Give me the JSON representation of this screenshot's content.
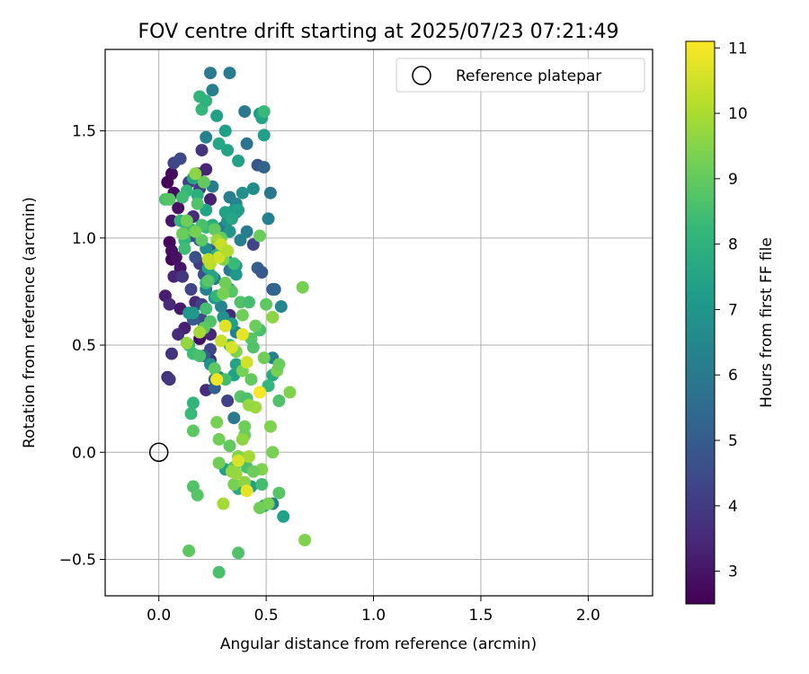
{
  "chart_data": {
    "type": "scatter",
    "title": "FOV centre drift starting at 2025/07/23 07:21:49",
    "xlabel": "Angular distance from reference (arcmin)",
    "ylabel": "Rotation from reference (arcmin)",
    "xlim": [
      -0.25,
      2.3
    ],
    "ylim": [
      -0.67,
      1.88
    ],
    "xticks": [
      0.0,
      0.5,
      1.0,
      1.5,
      2.0
    ],
    "xtick_labels": [
      "0.0",
      "0.5",
      "1.0",
      "1.5",
      "2.0"
    ],
    "yticks": [
      -0.5,
      0.0,
      0.5,
      1.0,
      1.5
    ],
    "ytick_labels": [
      "−0.5",
      "0.0",
      "0.5",
      "1.0",
      "1.5"
    ],
    "grid": true,
    "legend": {
      "position": "top-right",
      "entries": [
        "Reference platepar"
      ]
    },
    "reference_point": {
      "x": 0.0,
      "y": 0.0
    },
    "colorbar": {
      "label": "Hours from first FF file",
      "min": 2.5,
      "max": 11.1,
      "ticks": [
        3,
        4,
        5,
        6,
        7,
        8,
        9,
        10,
        11
      ],
      "tick_labels": [
        "3",
        "4",
        "5",
        "6",
        "7",
        "8",
        "9",
        "10",
        "11"
      ],
      "colormap": "viridis"
    },
    "point_columns": [
      "x",
      "y",
      "hours"
    ],
    "points": [
      [
        0.04,
        1.26,
        2.6
      ],
      [
        0.06,
        1.3,
        2.7
      ],
      [
        0.07,
        1.21,
        2.8
      ],
      [
        0.09,
        1.14,
        2.9
      ],
      [
        0.06,
        1.08,
        3.0
      ],
      [
        0.05,
        0.98,
        2.7
      ],
      [
        0.06,
        0.94,
        2.8
      ],
      [
        0.06,
        0.9,
        2.6
      ],
      [
        0.08,
        0.91,
        2.9
      ],
      [
        0.1,
        0.86,
        3.0
      ],
      [
        0.03,
        0.73,
        3.2
      ],
      [
        0.07,
        0.82,
        3.4
      ],
      [
        0.05,
        0.69,
        3.5
      ],
      [
        0.1,
        0.67,
        3.1
      ],
      [
        0.12,
        0.58,
        3.3
      ],
      [
        0.09,
        0.55,
        3.6
      ],
      [
        0.06,
        0.46,
        3.8
      ],
      [
        0.04,
        0.35,
        3.7
      ],
      [
        0.05,
        0.34,
        3.9
      ],
      [
        0.18,
        1.3,
        3.5
      ],
      [
        0.22,
        1.32,
        3.4
      ],
      [
        0.2,
        1.41,
        3.8
      ],
      [
        0.24,
        1.18,
        3.3
      ],
      [
        0.16,
        1.1,
        3.6
      ],
      [
        0.23,
        0.86,
        3.2
      ],
      [
        0.17,
        0.7,
        3.5
      ],
      [
        0.21,
        0.6,
        3.0
      ],
      [
        0.24,
        0.55,
        3.4
      ],
      [
        0.24,
        0.43,
        3.7
      ],
      [
        0.22,
        0.29,
        3.6
      ],
      [
        0.33,
        0.64,
        3.5
      ],
      [
        0.19,
        0.53,
        2.9
      ],
      [
        0.11,
        0.82,
        3.9
      ],
      [
        0.07,
        1.35,
        4.3
      ],
      [
        0.1,
        1.37,
        4.4
      ],
      [
        0.14,
        1.26,
        4.2
      ],
      [
        0.19,
        1.23,
        4.1
      ],
      [
        0.13,
        1.08,
        4.2
      ],
      [
        0.15,
        1.01,
        4.4
      ],
      [
        0.19,
        0.88,
        4.0
      ],
      [
        0.15,
        0.76,
        4.3
      ],
      [
        0.2,
        0.69,
        4.2
      ],
      [
        0.2,
        0.62,
        4.5
      ],
      [
        0.24,
        0.48,
        4.3
      ],
      [
        0.32,
        0.24,
        4.2
      ],
      [
        0.44,
        0.97,
        4.3
      ],
      [
        0.17,
        0.91,
        4.6
      ],
      [
        0.26,
        0.95,
        4.8
      ],
      [
        0.28,
        1.01,
        4.7
      ],
      [
        0.19,
        0.99,
        4.9
      ],
      [
        0.21,
        0.83,
        4.6
      ],
      [
        0.16,
        0.62,
        5.0
      ],
      [
        0.46,
        1.34,
        4.8
      ],
      [
        0.49,
        1.33,
        5.2
      ],
      [
        0.46,
        0.86,
        5.1
      ],
      [
        0.48,
        0.84,
        4.9
      ],
      [
        0.53,
        0.76,
        5.0
      ],
      [
        0.54,
        0.76,
        5.3
      ],
      [
        0.21,
        0.45,
        5.2
      ],
      [
        0.26,
        0.3,
        5.1
      ],
      [
        0.26,
        0.34,
        5.4
      ],
      [
        0.24,
        1.77,
        6.0
      ],
      [
        0.33,
        1.77,
        6.1
      ],
      [
        0.25,
        1.69,
        6.2
      ],
      [
        0.41,
        1.44,
        5.8
      ],
      [
        0.22,
        1.47,
        6.3
      ],
      [
        0.4,
        1.59,
        6.0
      ],
      [
        0.52,
        1.21,
        5.9
      ],
      [
        0.25,
        1.24,
        6.1
      ],
      [
        0.33,
        1.19,
        6.2
      ],
      [
        0.36,
        1.16,
        6.4
      ],
      [
        0.51,
        1.09,
        6.3
      ],
      [
        0.3,
        1.05,
        6.0
      ],
      [
        0.41,
        1.03,
        6.1
      ],
      [
        0.38,
        0.99,
        6.2
      ],
      [
        0.31,
        0.91,
        6.3
      ],
      [
        0.33,
        0.85,
        6.0
      ],
      [
        0.26,
        0.81,
        6.1
      ],
      [
        0.22,
        0.76,
        6.2
      ],
      [
        0.29,
        0.68,
        6.4
      ],
      [
        0.31,
        0.59,
        6.1
      ],
      [
        0.36,
        0.56,
        6.3
      ],
      [
        0.53,
        0.44,
        6.2
      ],
      [
        0.57,
        0.68,
        6.5
      ],
      [
        0.35,
        0.16,
        6.0
      ],
      [
        0.53,
        -0.24,
        6.2
      ],
      [
        0.44,
        1.23,
        6.7
      ],
      [
        0.39,
        1.21,
        6.8
      ],
      [
        0.36,
        1.12,
        6.6
      ],
      [
        0.32,
        1.08,
        6.9
      ],
      [
        0.33,
        1.03,
        7.0
      ],
      [
        0.35,
        1.13,
        7.1
      ],
      [
        0.29,
        0.95,
        6.8
      ],
      [
        0.22,
        0.95,
        6.7
      ],
      [
        0.36,
        0.87,
        7.0
      ],
      [
        0.36,
        0.83,
        7.1
      ],
      [
        0.33,
        0.76,
        6.9
      ],
      [
        0.26,
        0.72,
        7.0
      ],
      [
        0.3,
        0.63,
        6.8
      ],
      [
        0.14,
        0.65,
        7.0
      ],
      [
        0.16,
        0.65,
        7.1
      ],
      [
        0.24,
        0.41,
        6.9
      ],
      [
        0.28,
        0.35,
        6.7
      ],
      [
        0.49,
        1.48,
        7.3
      ],
      [
        0.37,
        1.36,
        7.4
      ],
      [
        0.31,
        1.5,
        7.3
      ],
      [
        0.32,
        1.41,
        7.5
      ],
      [
        0.27,
        1.57,
        7.4
      ],
      [
        0.28,
        1.44,
        7.6
      ],
      [
        0.47,
        1.58,
        7.2
      ],
      [
        0.48,
        1.56,
        7.5
      ],
      [
        0.16,
        1.28,
        7.6
      ],
      [
        0.22,
        1.13,
        7.5
      ],
      [
        0.31,
        1.12,
        7.4
      ],
      [
        0.37,
        1.13,
        7.3
      ],
      [
        0.34,
        1.09,
        7.6
      ],
      [
        0.23,
        0.86,
        7.4
      ],
      [
        0.25,
        0.82,
        7.5
      ],
      [
        0.34,
        0.6,
        7.3
      ],
      [
        0.47,
        0.57,
        7.6
      ],
      [
        0.35,
        0.36,
        7.4
      ],
      [
        0.36,
        0.41,
        7.5
      ],
      [
        0.51,
        0.31,
        7.2
      ],
      [
        0.53,
        0.36,
        7.7
      ],
      [
        0.31,
        -0.08,
        7.4
      ],
      [
        0.37,
        -0.17,
        7.6
      ],
      [
        0.43,
        -0.16,
        7.3
      ],
      [
        0.49,
        -0.25,
        7.5
      ],
      [
        0.58,
        -0.3,
        7.4
      ],
      [
        0.25,
        1.06,
        7.8
      ],
      [
        0.19,
        1.66,
        8.1
      ],
      [
        0.2,
        1.6,
        8.2
      ],
      [
        0.22,
        1.64,
        8.0
      ],
      [
        0.49,
        1.59,
        8.3
      ],
      [
        0.18,
        1.2,
        7.9
      ],
      [
        0.13,
        1.22,
        8.2
      ],
      [
        0.11,
        1.19,
        8.4
      ],
      [
        0.1,
        1.08,
        8.1
      ],
      [
        0.13,
        1.04,
        8.0
      ],
      [
        0.15,
        1.04,
        8.3
      ],
      [
        0.22,
        1.05,
        8.2
      ],
      [
        0.12,
        0.99,
        8.1
      ],
      [
        0.12,
        0.95,
        8.4
      ],
      [
        0.27,
        0.92,
        8.0
      ],
      [
        0.35,
        0.88,
        8.3
      ],
      [
        0.22,
        0.79,
        8.2
      ],
      [
        0.27,
        0.73,
        8.1
      ],
      [
        0.14,
        0.5,
        8.3
      ],
      [
        0.16,
        0.46,
        8.4
      ],
      [
        0.33,
        0.5,
        8.0
      ],
      [
        0.51,
        0.31,
        8.2
      ],
      [
        0.15,
        0.18,
        8.3
      ],
      [
        0.16,
        0.23,
        8.1
      ],
      [
        0.03,
        1.18,
        8.6
      ],
      [
        0.05,
        1.18,
        8.8
      ],
      [
        0.12,
        1.02,
        8.5
      ],
      [
        0.18,
        1.16,
        8.7
      ],
      [
        0.2,
        0.99,
        8.9
      ],
      [
        0.2,
        1.06,
        8.6
      ],
      [
        0.23,
        0.8,
        8.8
      ],
      [
        0.22,
        0.67,
        8.5
      ],
      [
        0.24,
        0.61,
        8.7
      ],
      [
        0.21,
        0.58,
        8.9
      ],
      [
        0.19,
        0.45,
        8.6
      ],
      [
        0.34,
        0.75,
        8.8
      ],
      [
        0.38,
        0.7,
        8.7
      ],
      [
        0.42,
        0.7,
        8.5
      ],
      [
        0.5,
        0.69,
        8.9
      ],
      [
        0.47,
        0.57,
        8.6
      ],
      [
        0.43,
        0.53,
        8.8
      ],
      [
        0.44,
        0.49,
        8.7
      ],
      [
        0.26,
        0.39,
        8.9
      ],
      [
        0.31,
        0.34,
        8.5
      ],
      [
        0.38,
        0.26,
        8.8
      ],
      [
        0.41,
        0.25,
        8.6
      ],
      [
        0.56,
        0.24,
        8.7
      ],
      [
        0.16,
        0.1,
        8.9
      ],
      [
        0.35,
        -0.07,
        8.8
      ],
      [
        0.41,
        -0.07,
        8.6
      ],
      [
        0.48,
        -0.15,
        8.5
      ],
      [
        0.56,
        -0.19,
        8.8
      ],
      [
        0.37,
        -0.47,
        8.7
      ],
      [
        0.28,
        -0.56,
        8.6
      ],
      [
        0.14,
        -0.46,
        8.9
      ],
      [
        0.16,
        -0.16,
        8.7
      ],
      [
        0.18,
        -0.2,
        8.8
      ],
      [
        0.11,
        1.02,
        9.1
      ],
      [
        0.13,
        1.08,
        9.2
      ],
      [
        0.17,
        1.03,
        9.3
      ],
      [
        0.26,
        1.04,
        9.0
      ],
      [
        0.29,
        1.0,
        9.1
      ],
      [
        0.3,
        0.9,
        9.4
      ],
      [
        0.31,
        0.79,
        9.2
      ],
      [
        0.3,
        0.74,
        9.3
      ],
      [
        0.39,
        0.64,
        9.2
      ],
      [
        0.45,
        0.59,
        9.1
      ],
      [
        0.36,
        0.47,
        9.4
      ],
      [
        0.39,
        0.38,
        9.3
      ],
      [
        0.43,
        0.34,
        9.0
      ],
      [
        0.49,
        0.44,
        9.2
      ],
      [
        0.55,
        0.38,
        9.3
      ],
      [
        0.56,
        0.41,
        9.1
      ],
      [
        0.61,
        0.28,
        9.4
      ],
      [
        0.27,
        0.14,
        9.3
      ],
      [
        0.4,
        0.12,
        9.2
      ],
      [
        0.4,
        0.08,
        9.1
      ],
      [
        0.52,
        0.12,
        9.4
      ],
      [
        0.53,
        0.0,
        9.3
      ],
      [
        0.28,
        0.06,
        9.2
      ],
      [
        0.33,
        0.03,
        9.0
      ],
      [
        0.37,
        -0.02,
        9.5
      ],
      [
        0.35,
        -0.15,
        9.3
      ],
      [
        0.48,
        -0.08,
        9.4
      ],
      [
        0.44,
        -0.09,
        9.1
      ],
      [
        0.28,
        -0.05,
        9.2
      ],
      [
        0.51,
        -0.24,
        9.3
      ],
      [
        0.47,
        -0.26,
        9.2
      ],
      [
        0.68,
        -0.41,
        9.4
      ],
      [
        0.67,
        0.77,
        9.3
      ],
      [
        0.47,
        1.01,
        9.1
      ],
      [
        0.21,
        1.26,
        9.0
      ],
      [
        0.17,
        1.3,
        9.6
      ],
      [
        0.27,
        0.99,
        9.8
      ],
      [
        0.13,
        0.51,
        9.7
      ],
      [
        0.19,
        0.56,
        9.9
      ],
      [
        0.53,
        0.63,
        9.6
      ],
      [
        0.45,
        0.21,
        9.8
      ],
      [
        0.42,
        0.22,
        9.7
      ],
      [
        0.39,
        0.06,
        9.6
      ],
      [
        0.42,
        -0.02,
        9.9
      ],
      [
        0.36,
        -0.1,
        9.8
      ],
      [
        0.34,
        -0.09,
        9.7
      ],
      [
        0.4,
        -0.14,
        9.6
      ],
      [
        0.3,
        -0.24,
        9.9
      ],
      [
        0.24,
        0.88,
        10.2
      ],
      [
        0.28,
        0.91,
        10.5
      ],
      [
        0.29,
        0.97,
        10.4
      ],
      [
        0.32,
        0.94,
        10.1
      ],
      [
        0.23,
        0.9,
        10.3
      ],
      [
        0.29,
        0.52,
        10.4
      ],
      [
        0.31,
        0.59,
        10.7
      ],
      [
        0.34,
        0.49,
        10.6
      ],
      [
        0.39,
        0.55,
        10.8
      ],
      [
        0.41,
        0.42,
        10.5
      ],
      [
        0.27,
        0.34,
        10.9
      ],
      [
        0.47,
        0.28,
        11.0
      ],
      [
        0.37,
        -0.04,
        10.6
      ],
      [
        0.41,
        -0.18,
        10.8
      ]
    ]
  }
}
